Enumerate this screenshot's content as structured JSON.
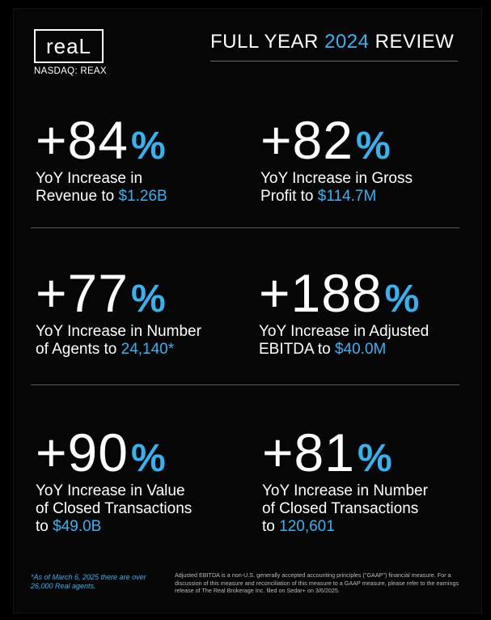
{
  "header": {
    "logo_text": "reaL",
    "ticker": "NASDAQ: REAX",
    "title_prefix": "FULL YEAR ",
    "title_year": "2024",
    "title_suffix": " REVIEW"
  },
  "stats": [
    {
      "value": "+84",
      "unit": "%",
      "desc_line1": "YoY Increase in",
      "desc_line2": "Revenue to ",
      "highlight": "$1.26B",
      "desc_line3": ""
    },
    {
      "value": "+82",
      "unit": "%",
      "desc_line1": "YoY Increase in Gross",
      "desc_line2": "Profit to ",
      "highlight": "$114.7M",
      "desc_line3": ""
    },
    {
      "value": "+77",
      "unit": "%",
      "desc_line1": "YoY Increase in Number",
      "desc_line2": "of Agents to ",
      "highlight": "24,140*",
      "desc_line3": ""
    },
    {
      "value": "+188",
      "unit": "%",
      "desc_line1": "YoY Increase in Adjusted",
      "desc_line2": "EBITDA to ",
      "highlight": "$40.0M",
      "desc_line3": ""
    },
    {
      "value": "+90",
      "unit": "%",
      "desc_line1": "YoY Increase in Value",
      "desc_line2": "of Closed Transactions",
      "desc_line3": "to ",
      "highlight": "$49.0B"
    },
    {
      "value": "+81",
      "unit": "%",
      "desc_line1": "YoY Increase in Number",
      "desc_line2": "of Closed Transactions",
      "desc_line3": "to ",
      "highlight": "120,601"
    }
  ],
  "footer": {
    "note": "*As of March 6, 2025 there are over 26,000 Real agents.",
    "disclaimer": "Adjusted EBITDA is a non-U.S. generally accepted accounting principles (\"GAAP\") financial measure. For a discussion of this measure and reconciliation of this measure to a GAAP measure, please refer to the earnings release of The Real Brokerage Inc. filed on Sedar+ on 3/6/2025."
  },
  "colors": {
    "accent": "#34b3f1",
    "background": "#000000",
    "text": "#ffffff"
  }
}
